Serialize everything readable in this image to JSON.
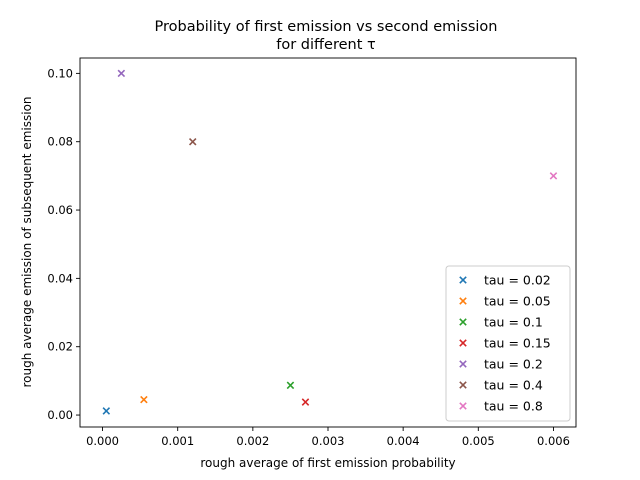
{
  "chart_data": {
    "type": "scatter",
    "title_line1": "Probability of first emission vs second emission",
    "title_line2": "for different τ",
    "xlabel": "rough average of first emission probability",
    "ylabel": "rough average emission of subsequent emission",
    "xlim": [
      -0.0003,
      0.0063
    ],
    "ylim": [
      -0.0035,
      0.1045
    ],
    "xticks": [
      0.0,
      0.001,
      0.002,
      0.003,
      0.004,
      0.005,
      0.006
    ],
    "xtick_labels": [
      "0.000",
      "0.001",
      "0.002",
      "0.003",
      "0.004",
      "0.005",
      "0.006"
    ],
    "yticks": [
      0.0,
      0.02,
      0.04,
      0.06,
      0.08,
      0.1
    ],
    "ytick_labels": [
      "0.00",
      "0.02",
      "0.04",
      "0.06",
      "0.08",
      "0.10"
    ],
    "grid": false,
    "marker": "x",
    "legend_position": "lower-right",
    "series": [
      {
        "name": "tau = 0.02",
        "color": "#1f77b4",
        "x": [
          5e-05
        ],
        "y": [
          0.0012
        ]
      },
      {
        "name": "tau = 0.05",
        "color": "#ff7f0e",
        "x": [
          0.00055
        ],
        "y": [
          0.0045
        ]
      },
      {
        "name": "tau = 0.1",
        "color": "#2ca02c",
        "x": [
          0.0025
        ],
        "y": [
          0.0087
        ]
      },
      {
        "name": "tau = 0.15",
        "color": "#d62728",
        "x": [
          0.0027
        ],
        "y": [
          0.0038
        ]
      },
      {
        "name": "tau = 0.2",
        "color": "#9467bd",
        "x": [
          0.00025
        ],
        "y": [
          0.1
        ]
      },
      {
        "name": "tau = 0.4",
        "color": "#8c564b",
        "x": [
          0.0012
        ],
        "y": [
          0.08
        ]
      },
      {
        "name": "tau = 0.8",
        "color": "#e377c2",
        "x": [
          0.006
        ],
        "y": [
          0.07
        ]
      }
    ]
  }
}
